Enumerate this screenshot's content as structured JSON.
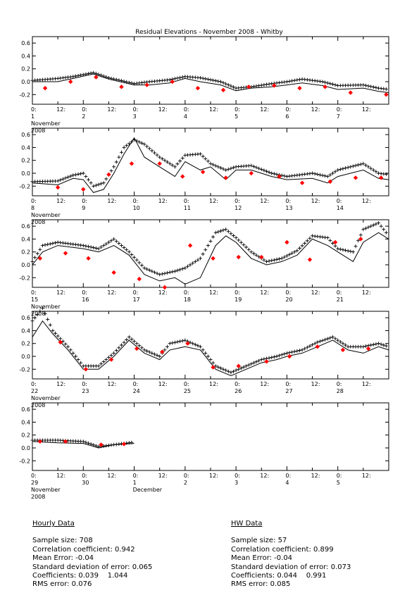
{
  "title": "Residual Elevations - November 2008 - Whitby",
  "month_label": "November",
  "year_label": "2008",
  "next_month_label": "December",
  "y_ticks": [
    "0.6",
    "0.4",
    "0.2",
    "0.0",
    "-0.2"
  ],
  "x_hour_ticks": [
    "0:",
    "12:"
  ],
  "chart_data": {
    "type": "line",
    "title": "Residual Elevations - November 2008 - Whitby",
    "x_unit": "day of November 2008 (fractional)",
    "ylim": [
      -0.35,
      0.7
    ],
    "series_note": "solid line = predicted residual, crosses = observed hourly residual, red diamonds = high-water values",
    "panels": [
      {
        "x_range": [
          1,
          8
        ],
        "day_labels": [
          "1",
          "2",
          "3",
          "4",
          "5",
          "6",
          "7"
        ],
        "line": [
          [
            1,
            0.0
          ],
          [
            1.5,
            0.0
          ],
          [
            1.8,
            0.05
          ],
          [
            2.2,
            0.12
          ],
          [
            2.5,
            0.04
          ],
          [
            3.0,
            -0.05
          ],
          [
            3.3,
            -0.05
          ],
          [
            3.7,
            -0.02
          ],
          [
            4.0,
            0.05
          ],
          [
            4.3,
            0.0
          ],
          [
            4.7,
            -0.05
          ],
          [
            5.0,
            -0.14
          ],
          [
            5.3,
            -0.1
          ],
          [
            5.7,
            -0.08
          ],
          [
            6.0,
            -0.05
          ],
          [
            6.3,
            -0.02
          ],
          [
            6.7,
            -0.06
          ],
          [
            7.0,
            -0.12
          ],
          [
            7.5,
            -0.1
          ],
          [
            7.8,
            -0.15
          ],
          [
            8.0,
            -0.17
          ]
        ],
        "obs": [
          [
            1,
            0.02
          ],
          [
            1.5,
            0.05
          ],
          [
            1.8,
            0.08
          ],
          [
            2.2,
            0.14
          ],
          [
            2.5,
            0.06
          ],
          [
            3.0,
            -0.03
          ],
          [
            3.3,
            0.0
          ],
          [
            3.7,
            0.03
          ],
          [
            4.0,
            0.08
          ],
          [
            4.3,
            0.06
          ],
          [
            4.7,
            0.0
          ],
          [
            5.0,
            -0.1
          ],
          [
            5.3,
            -0.08
          ],
          [
            5.7,
            -0.03
          ],
          [
            6.0,
            0.0
          ],
          [
            6.3,
            0.04
          ],
          [
            6.7,
            0.0
          ],
          [
            7.0,
            -0.06
          ],
          [
            7.5,
            -0.05
          ],
          [
            7.8,
            -0.1
          ],
          [
            8.0,
            -0.12
          ]
        ],
        "hw": [
          [
            1.25,
            -0.1
          ],
          [
            1.75,
            0.0
          ],
          [
            2.25,
            0.07
          ],
          [
            2.75,
            -0.08
          ],
          [
            3.25,
            -0.05
          ],
          [
            3.75,
            0.0
          ],
          [
            4.25,
            -0.1
          ],
          [
            4.75,
            -0.13
          ],
          [
            5.25,
            -0.08
          ],
          [
            5.75,
            -0.06
          ],
          [
            6.25,
            -0.1
          ],
          [
            6.75,
            -0.08
          ],
          [
            7.25,
            -0.17
          ],
          [
            7.95,
            -0.2
          ]
        ]
      },
      {
        "x_range": [
          8,
          15
        ],
        "day_labels": [
          "8",
          "9",
          "10",
          "11",
          "12",
          "13",
          "14"
        ],
        "line": [
          [
            8,
            -0.15
          ],
          [
            8.5,
            -0.18
          ],
          [
            8.8,
            -0.08
          ],
          [
            9.0,
            -0.1
          ],
          [
            9.2,
            -0.3
          ],
          [
            9.4,
            -0.25
          ],
          [
            9.6,
            0.0
          ],
          [
            9.8,
            0.3
          ],
          [
            10.0,
            0.55
          ],
          [
            10.2,
            0.25
          ],
          [
            10.5,
            0.1
          ],
          [
            10.8,
            -0.05
          ],
          [
            11.0,
            0.18
          ],
          [
            11.3,
            0.05
          ],
          [
            11.5,
            0.1
          ],
          [
            11.8,
            -0.1
          ],
          [
            12.0,
            0.05
          ],
          [
            12.3,
            0.05
          ],
          [
            12.7,
            -0.05
          ],
          [
            13.0,
            -0.1
          ],
          [
            13.5,
            -0.08
          ],
          [
            13.8,
            -0.15
          ],
          [
            14.0,
            -0.05
          ],
          [
            14.5,
            0.05
          ],
          [
            14.8,
            -0.08
          ],
          [
            15.0,
            -0.1
          ]
        ],
        "obs": [
          [
            8,
            -0.13
          ],
          [
            8.5,
            -0.12
          ],
          [
            8.8,
            -0.03
          ],
          [
            9.0,
            0.0
          ],
          [
            9.2,
            -0.2
          ],
          [
            9.4,
            -0.15
          ],
          [
            9.6,
            0.1
          ],
          [
            9.8,
            0.4
          ],
          [
            10.0,
            0.52
          ],
          [
            10.2,
            0.45
          ],
          [
            10.5,
            0.25
          ],
          [
            10.8,
            0.1
          ],
          [
            11.0,
            0.28
          ],
          [
            11.3,
            0.3
          ],
          [
            11.5,
            0.15
          ],
          [
            11.8,
            0.05
          ],
          [
            12.0,
            0.1
          ],
          [
            12.3,
            0.12
          ],
          [
            12.7,
            0.0
          ],
          [
            13.0,
            -0.05
          ],
          [
            13.5,
            0.0
          ],
          [
            13.8,
            -0.05
          ],
          [
            14.0,
            0.05
          ],
          [
            14.5,
            0.15
          ],
          [
            14.8,
            0.0
          ],
          [
            15.0,
            -0.02
          ]
        ],
        "hw": [
          [
            8.5,
            -0.22
          ],
          [
            9.0,
            -0.25
          ],
          [
            9.5,
            -0.02
          ],
          [
            9.95,
            0.15
          ],
          [
            10.5,
            0.15
          ],
          [
            10.95,
            -0.05
          ],
          [
            11.35,
            0.02
          ],
          [
            11.8,
            -0.07
          ],
          [
            12.3,
            0.0
          ],
          [
            12.85,
            -0.05
          ],
          [
            13.3,
            -0.15
          ],
          [
            13.85,
            -0.13
          ],
          [
            14.35,
            -0.07
          ],
          [
            14.85,
            -0.07
          ]
        ]
      },
      {
        "x_range": [
          15,
          22
        ],
        "day_labels": [
          "15",
          "16",
          "17",
          "18",
          "19",
          "20",
          "21"
        ],
        "line": [
          [
            15,
            0.0
          ],
          [
            15.2,
            0.2
          ],
          [
            15.5,
            0.3
          ],
          [
            16.0,
            0.25
          ],
          [
            16.3,
            0.2
          ],
          [
            16.6,
            0.3
          ],
          [
            16.9,
            0.15
          ],
          [
            17.2,
            -0.15
          ],
          [
            17.5,
            -0.25
          ],
          [
            17.8,
            -0.2
          ],
          [
            18.0,
            -0.3
          ],
          [
            18.3,
            -0.2
          ],
          [
            18.6,
            0.3
          ],
          [
            18.8,
            0.45
          ],
          [
            19.0,
            0.35
          ],
          [
            19.3,
            0.1
          ],
          [
            19.6,
            0.0
          ],
          [
            19.9,
            0.05
          ],
          [
            20.2,
            0.15
          ],
          [
            20.5,
            0.4
          ],
          [
            20.8,
            0.3
          ],
          [
            21.0,
            0.2
          ],
          [
            21.3,
            0.05
          ],
          [
            21.5,
            0.35
          ],
          [
            21.8,
            0.5
          ],
          [
            22.0,
            0.4
          ]
        ],
        "obs": [
          [
            15,
            0.05
          ],
          [
            15.2,
            0.3
          ],
          [
            15.5,
            0.35
          ],
          [
            16.0,
            0.3
          ],
          [
            16.3,
            0.25
          ],
          [
            16.6,
            0.4
          ],
          [
            16.9,
            0.2
          ],
          [
            17.2,
            -0.05
          ],
          [
            17.5,
            -0.15
          ],
          [
            17.8,
            -0.1
          ],
          [
            18.0,
            -0.05
          ],
          [
            18.3,
            0.1
          ],
          [
            18.6,
            0.5
          ],
          [
            18.8,
            0.55
          ],
          [
            19.0,
            0.42
          ],
          [
            19.3,
            0.2
          ],
          [
            19.6,
            0.05
          ],
          [
            19.9,
            0.1
          ],
          [
            20.2,
            0.22
          ],
          [
            20.5,
            0.45
          ],
          [
            20.8,
            0.42
          ],
          [
            21.0,
            0.25
          ],
          [
            21.3,
            0.2
          ],
          [
            21.5,
            0.55
          ],
          [
            21.8,
            0.65
          ],
          [
            22.0,
            0.45
          ]
        ],
        "hw": [
          [
            15.15,
            0.1
          ],
          [
            15.65,
            0.18
          ],
          [
            16.1,
            0.1
          ],
          [
            16.6,
            -0.12
          ],
          [
            17.1,
            -0.22
          ],
          [
            17.6,
            -0.35
          ],
          [
            18.1,
            0.3
          ],
          [
            18.55,
            0.1
          ],
          [
            19.05,
            0.12
          ],
          [
            19.5,
            0.12
          ],
          [
            20.0,
            0.35
          ],
          [
            20.45,
            0.08
          ],
          [
            20.95,
            0.35
          ],
          [
            21.45,
            0.4
          ]
        ]
      },
      {
        "x_range": [
          22,
          29
        ],
        "day_labels": [
          "22",
          "23",
          "24",
          "25",
          "26",
          "27",
          "28"
        ],
        "line": [
          [
            22,
            0.3
          ],
          [
            22.2,
            0.55
          ],
          [
            22.4,
            0.35
          ],
          [
            22.7,
            0.1
          ],
          [
            23.0,
            -0.2
          ],
          [
            23.3,
            -0.2
          ],
          [
            23.6,
            0.0
          ],
          [
            23.9,
            0.25
          ],
          [
            24.2,
            0.05
          ],
          [
            24.5,
            -0.05
          ],
          [
            24.7,
            0.1
          ],
          [
            25.0,
            0.15
          ],
          [
            25.3,
            0.1
          ],
          [
            25.6,
            -0.2
          ],
          [
            25.9,
            -0.3
          ],
          [
            26.2,
            -0.2
          ],
          [
            26.5,
            -0.1
          ],
          [
            26.8,
            -0.05
          ],
          [
            27.0,
            0.0
          ],
          [
            27.3,
            0.05
          ],
          [
            27.6,
            0.15
          ],
          [
            27.9,
            0.25
          ],
          [
            28.2,
            0.1
          ],
          [
            28.5,
            0.05
          ],
          [
            28.8,
            0.15
          ],
          [
            29.0,
            0.1
          ]
        ],
        "obs": [
          [
            22,
            0.55
          ],
          [
            22.2,
            0.75
          ],
          [
            22.4,
            0.4
          ],
          [
            22.7,
            0.15
          ],
          [
            23.0,
            -0.15
          ],
          [
            23.3,
            -0.15
          ],
          [
            23.6,
            0.05
          ],
          [
            23.9,
            0.3
          ],
          [
            24.2,
            0.1
          ],
          [
            24.5,
            0.0
          ],
          [
            24.7,
            0.2
          ],
          [
            25.0,
            0.25
          ],
          [
            25.3,
            0.15
          ],
          [
            25.6,
            -0.15
          ],
          [
            25.9,
            -0.25
          ],
          [
            26.2,
            -0.15
          ],
          [
            26.5,
            -0.05
          ],
          [
            26.8,
            0.0
          ],
          [
            27.0,
            0.05
          ],
          [
            27.3,
            0.1
          ],
          [
            27.6,
            0.22
          ],
          [
            27.9,
            0.3
          ],
          [
            28.2,
            0.15
          ],
          [
            28.5,
            0.15
          ],
          [
            28.8,
            0.2
          ],
          [
            29.0,
            0.15
          ]
        ],
        "hw": [
          [
            22.55,
            0.22
          ],
          [
            23.05,
            -0.2
          ],
          [
            23.55,
            -0.05
          ],
          [
            24.05,
            0.12
          ],
          [
            24.55,
            0.07
          ],
          [
            25.05,
            0.2
          ],
          [
            25.55,
            -0.17
          ],
          [
            26.05,
            -0.15
          ],
          [
            26.6,
            -0.08
          ],
          [
            27.05,
            0.0
          ],
          [
            27.6,
            0.15
          ],
          [
            28.1,
            0.1
          ],
          [
            28.6,
            0.12
          ]
        ]
      },
      {
        "x_range": [
          29,
          36
        ],
        "day_labels": [
          "29",
          "30",
          "1",
          "2",
          "3",
          "4",
          "5"
        ],
        "line": [
          [
            29,
            0.1
          ],
          [
            29.5,
            0.08
          ],
          [
            30.0,
            0.07
          ],
          [
            30.3,
            0.0
          ],
          [
            30.6,
            0.05
          ],
          [
            31.0,
            0.07
          ]
        ],
        "obs": [
          [
            29,
            0.12
          ],
          [
            29.5,
            0.12
          ],
          [
            30.0,
            0.1
          ],
          [
            30.3,
            0.02
          ],
          [
            30.6,
            0.05
          ],
          [
            31.0,
            0.09
          ]
        ],
        "hw": [
          [
            29.15,
            0.1
          ],
          [
            29.65,
            0.1
          ],
          [
            30.35,
            0.05
          ],
          [
            30.8,
            0.06
          ]
        ]
      }
    ]
  },
  "stats": {
    "hourly": {
      "heading": "Hourly Data",
      "lines": [
        "Sample size: 708",
        "Correlation coefficient: 0.942",
        "Mean Error: -0.04",
        "Standard deviation of error: 0.065",
        "Coefficients: 0.039    1.044",
        "RMS error: 0.076"
      ]
    },
    "hw": {
      "heading": "HW Data",
      "lines": [
        "Sample size: 57",
        "Correlation coefficient: 0.899",
        "Mean Error: -0.04",
        "Standard deviation of error: 0.073",
        "Coefficients: 0.044    0.991",
        "RMS error: 0.085"
      ]
    }
  }
}
